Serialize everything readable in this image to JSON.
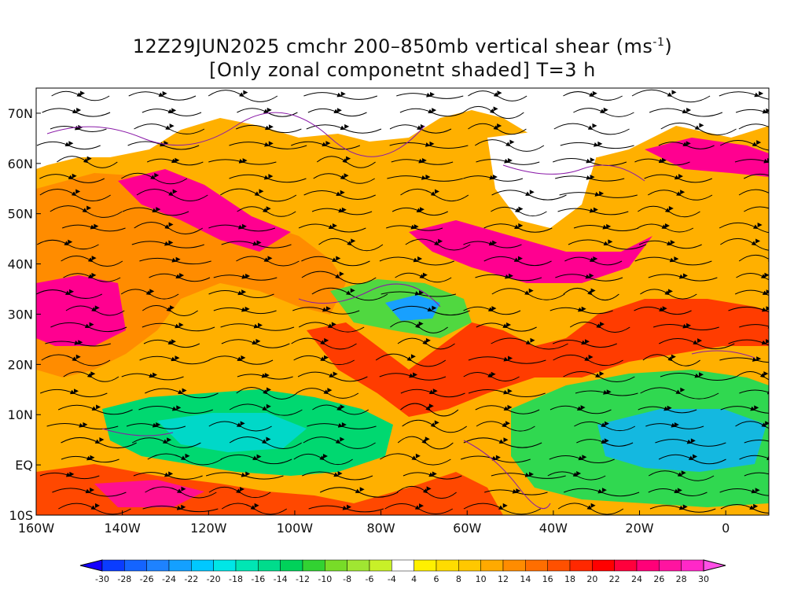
{
  "title": {
    "line1_prefix": "12Z29JUN2025 cmchr 200–850mb vertical shear (ms",
    "line1_sup": "-1",
    "line1_suffix": ")",
    "line2": "[Only zonal componetnt shaded] T=3 h"
  },
  "map": {
    "lon_labels": [
      "160W",
      "140W",
      "120W",
      "100W",
      "80W",
      "60W",
      "40W",
      "20W",
      "0"
    ],
    "lat_labels": [
      "70N",
      "60N",
      "50N",
      "40N",
      "30N",
      "20N",
      "10N",
      "EQ",
      "10S"
    ],
    "lon_values": [
      -160,
      -140,
      -120,
      -100,
      -80,
      -60,
      -40,
      -20,
      0
    ],
    "lat_values": [
      70,
      60,
      50,
      40,
      30,
      20,
      10,
      0,
      -10
    ],
    "lon_range": [
      -160,
      10
    ],
    "lat_range": [
      -10,
      75
    ],
    "streamline_color": "#000000",
    "contour_color": "#8a1aa8"
  },
  "colorbar": {
    "levels": [
      "-30",
      "-28",
      "-26",
      "-24",
      "-22",
      "-20",
      "-18",
      "-16",
      "-14",
      "-12",
      "-10",
      "-8",
      "-6",
      "-4",
      "4",
      "6",
      "8",
      "10",
      "12",
      "14",
      "16",
      "18",
      "20",
      "22",
      "24",
      "26",
      "28",
      "30"
    ],
    "colors": [
      "#1400ff",
      "#0a3cff",
      "#1464ff",
      "#1e82ff",
      "#14a0ff",
      "#00c8ff",
      "#00e6e6",
      "#00e6b4",
      "#00dc8c",
      "#00d25a",
      "#32d232",
      "#78dc28",
      "#a0e632",
      "#c8f028",
      "#ffffff",
      "#fff000",
      "#ffdc00",
      "#ffc800",
      "#ffaa00",
      "#ff8c00",
      "#ff6e00",
      "#ff5000",
      "#ff2800",
      "#ff0000",
      "#ff003c",
      "#ff0078",
      "#ff14a0",
      "#ff28c8",
      "#ff50e6"
    ]
  },
  "regions": [
    {
      "name": "orange-band-west",
      "fill": "#ff8c00"
    },
    {
      "name": "red-band-caribbean",
      "fill": "#ff3c00"
    },
    {
      "name": "magenta-jet-atlantic",
      "fill": "#ff0090"
    },
    {
      "name": "green-easterly-pacific",
      "fill": "#00d870"
    },
    {
      "name": "green-easterly-atlantic",
      "fill": "#30d850"
    },
    {
      "name": "blue-core-atlantic",
      "fill": "#18a0ff"
    },
    {
      "name": "yellow-rim",
      "fill": "#ffe600"
    }
  ]
}
